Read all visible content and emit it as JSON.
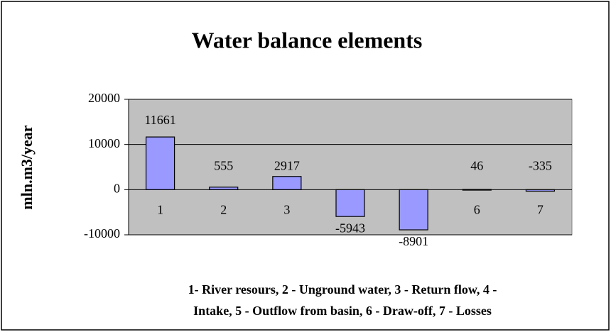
{
  "chart_data": {
    "type": "bar",
    "title": "Water balance elements",
    "y_label": "mln.m3/year",
    "categories": [
      "1",
      "2",
      "3",
      "4",
      "5",
      "6",
      "7"
    ],
    "values": [
      11661,
      555,
      2917,
      -5943,
      -8901,
      46,
      -335
    ],
    "color": "#9999ff",
    "ylim": [
      -10000,
      20000
    ],
    "yticks": [
      -10000,
      0,
      10000,
      20000
    ],
    "grid": true,
    "caption": [
      "1- River resours, 2 - Unground water, 3 - Return flow, 4 -",
      "Intake, 5 - Outflow from basin, 6 - Draw-off, 7 - Losses"
    ]
  }
}
